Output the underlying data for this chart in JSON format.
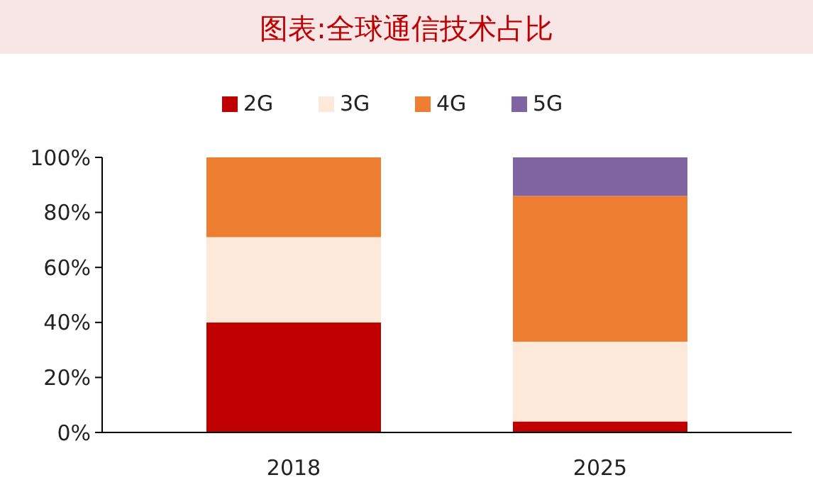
{
  "chart_data": {
    "type": "bar",
    "title": "图表:全球通信技术占比",
    "categories": [
      "2018",
      "2025"
    ],
    "stacked": true,
    "series": [
      {
        "name": "2G",
        "color": "#c00000",
        "values": [
          40,
          4
        ]
      },
      {
        "name": "3G",
        "color": "#fde9d9",
        "values": [
          31,
          29
        ]
      },
      {
        "name": "4G",
        "color": "#ed7d31",
        "values": [
          29,
          53
        ]
      },
      {
        "name": "5G",
        "color": "#8064a2",
        "values": [
          0,
          14
        ]
      }
    ],
    "ylim": [
      0,
      100
    ],
    "yticks": [
      {
        "value": 0,
        "label": "0%"
      },
      {
        "value": 20,
        "label": "20%"
      },
      {
        "value": 40,
        "label": "40%"
      },
      {
        "value": 60,
        "label": "60%"
      },
      {
        "value": 80,
        "label": "80%"
      },
      {
        "value": 100,
        "label": "100%"
      }
    ],
    "grid": false,
    "legend": "top"
  }
}
